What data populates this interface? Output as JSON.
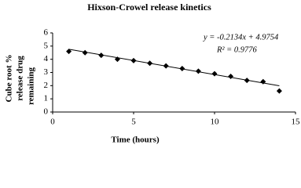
{
  "chart_data": {
    "type": "scatter",
    "title": "Hixson-Crowel release kinetics",
    "xlabel": "Time (hours)",
    "ylabel": [
      "Cube root %",
      "release drug",
      "remaining"
    ],
    "x": [
      1,
      2,
      3,
      4,
      5,
      6,
      7,
      8,
      9,
      10,
      11,
      12,
      13,
      14
    ],
    "series": [
      {
        "color": "#000000",
        "values": [
          4.6,
          4.5,
          4.3,
          4.0,
          3.9,
          3.7,
          3.5,
          3.3,
          3.1,
          2.9,
          2.7,
          2.4,
          2.3,
          1.6
        ]
      }
    ],
    "trendline": {
      "slope": -0.2134,
      "intercept": 4.9754,
      "equation": "y = -0.2134x + 4.9754",
      "r2_label": "R² = 0.9776",
      "color": "#000000"
    },
    "xlim": [
      0,
      15
    ],
    "xticks": [
      0,
      5,
      10,
      15
    ],
    "ylim": [
      0,
      6
    ],
    "yticks": [
      0,
      1,
      2,
      3,
      4,
      5,
      6
    ],
    "grid": false
  }
}
